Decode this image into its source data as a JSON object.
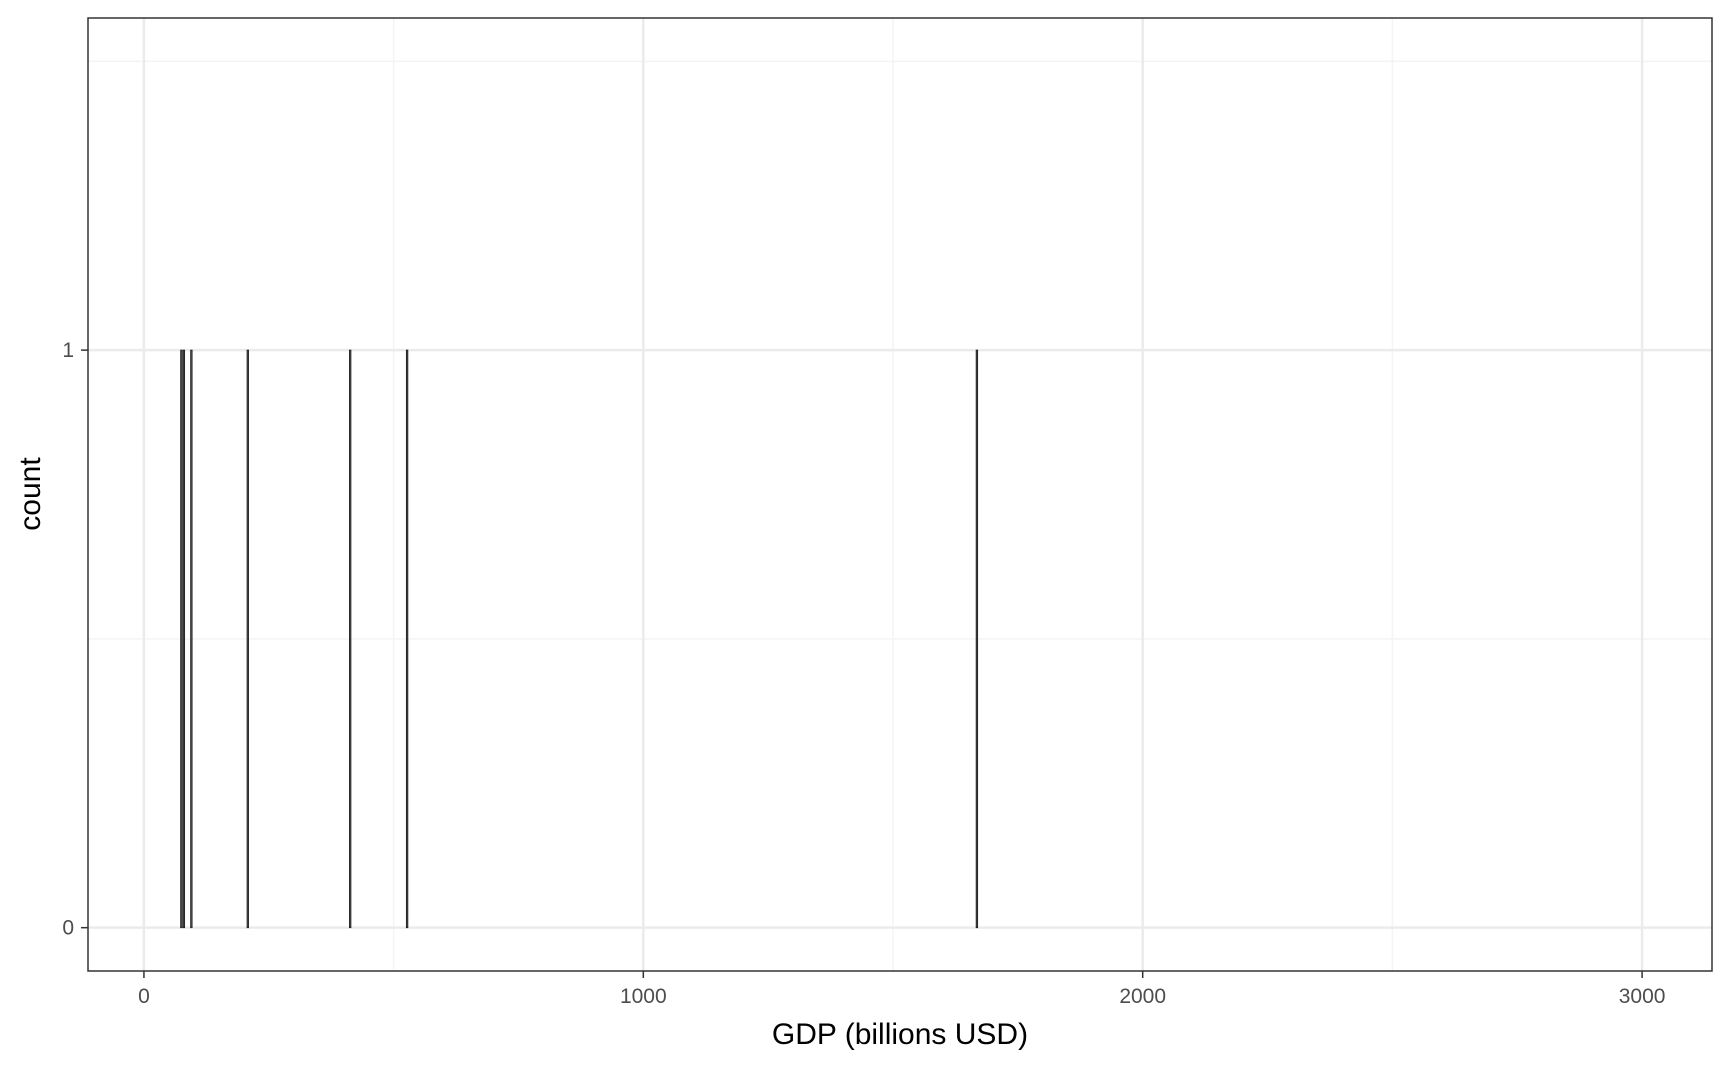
{
  "chart_data": {
    "type": "bar",
    "subtype": "histogram",
    "title": "",
    "xlabel": "GDP (billions USD)",
    "ylabel": "count",
    "xlim": [
      -112,
      3140
    ],
    "ylim": [
      -0.075,
      1.575
    ],
    "x_ticks": [
      0,
      1000,
      2000,
      3000
    ],
    "x_tick_labels": [
      "0",
      "1000",
      "2000",
      "3000"
    ],
    "x_minor_gridlines": [
      500,
      1500,
      2500
    ],
    "y_ticks": [
      0,
      1
    ],
    "y_tick_labels": [
      "0",
      "1"
    ],
    "y_minor_gridlines": [
      0.5,
      1.5
    ],
    "bin_width": 3,
    "bars": [
      {
        "x": 75,
        "count": 1
      },
      {
        "x": 80,
        "count": 1
      },
      {
        "x": 95,
        "count": 1
      },
      {
        "x": 208,
        "count": 1
      },
      {
        "x": 413,
        "count": 1
      },
      {
        "x": 527,
        "count": 1
      },
      {
        "x": 1668,
        "count": 1
      }
    ],
    "grid": true,
    "legend": "none",
    "colors": {
      "bar_fill": "#595959",
      "bar_outline": "#1a1a1a",
      "panel_border": "#333333",
      "grid_major": "#ebebeb",
      "grid_minor": "#f4f4f4",
      "tick_label": "#4d4d4d"
    }
  }
}
